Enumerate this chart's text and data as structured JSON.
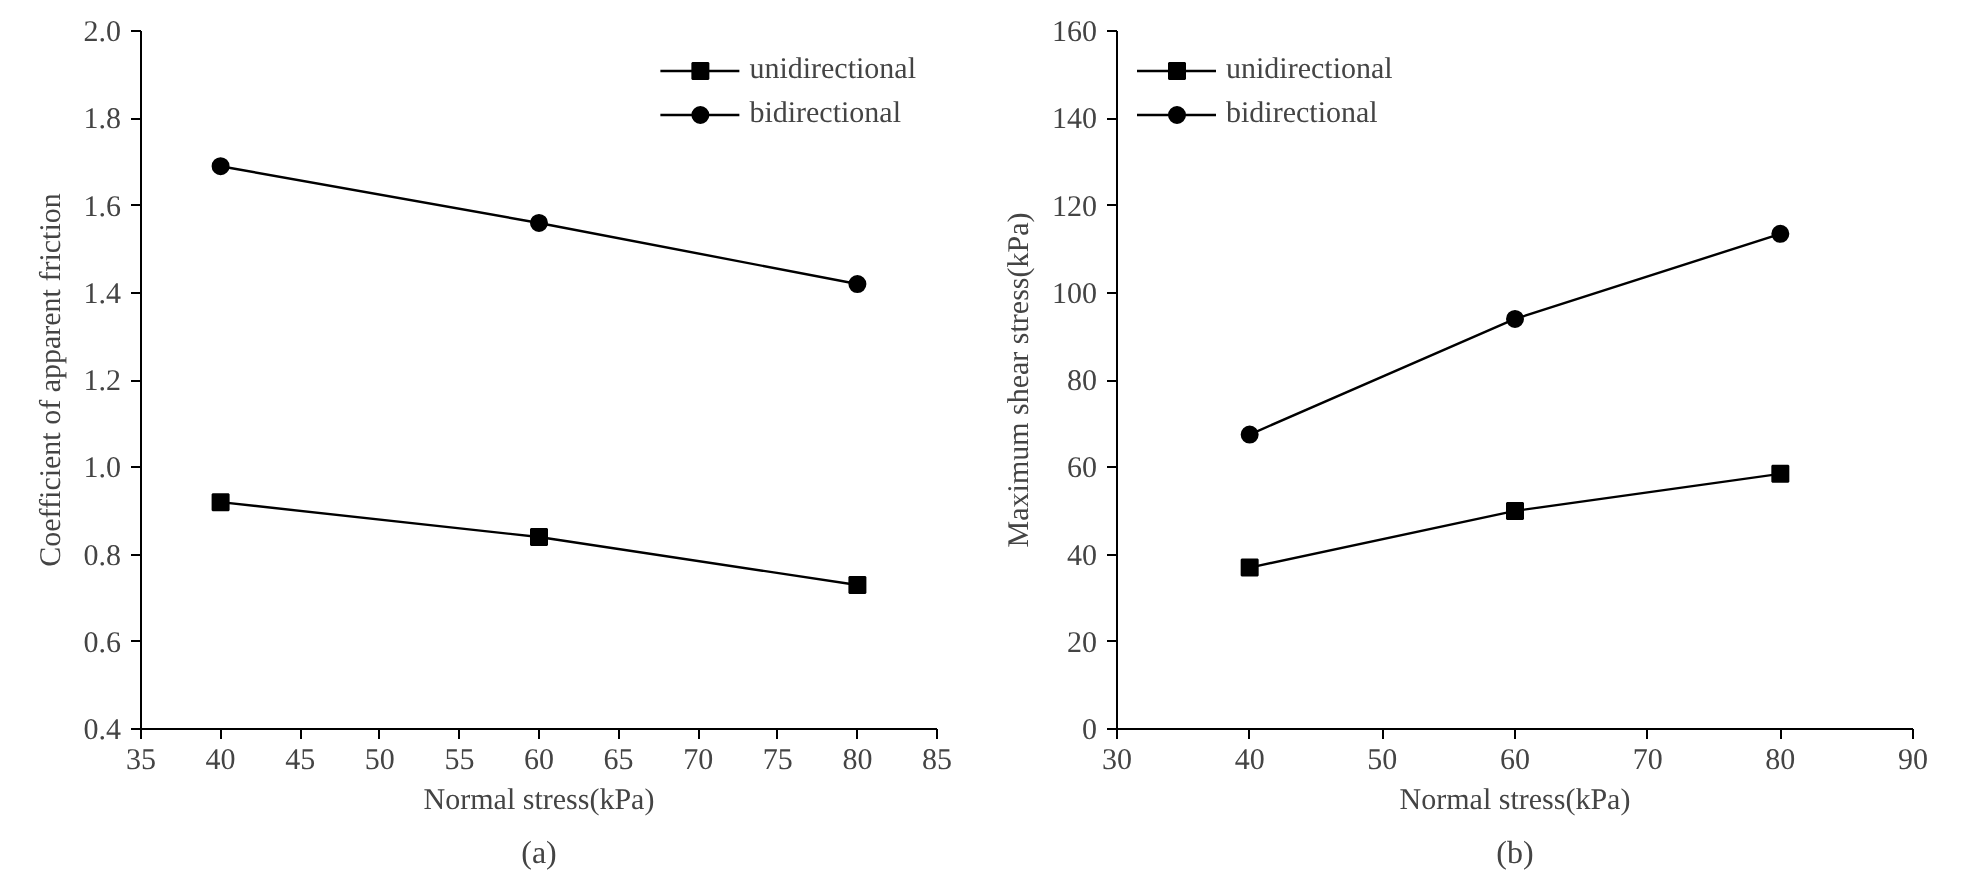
{
  "chart_data": [
    {
      "type": "line",
      "xlabel": "Normal stress(kPa)",
      "ylabel": "Coefficient of apparent friction",
      "annotations": [
        "(a)"
      ],
      "x": [
        40,
        60,
        80
      ],
      "xlim": [
        35,
        85
      ],
      "xticks": [
        35,
        40,
        45,
        50,
        55,
        60,
        65,
        70,
        75,
        80,
        85
      ],
      "ylim": [
        0.4,
        2.0
      ],
      "yticks": [
        0.4,
        0.6,
        0.8,
        {
          "value": 1.0,
          "label": "1.0"
        },
        1.2,
        1.4,
        1.6,
        1.8,
        {
          "value": 2.0,
          "label": "2.0"
        }
      ],
      "grid": false,
      "legend": "top right",
      "line_style": "solid",
      "series": [
        {
          "name": "unidirectional",
          "color": "#000000",
          "marker": "square",
          "values": [
            0.92,
            0.84,
            0.73
          ]
        },
        {
          "name": "bidirectional",
          "color": "#000000",
          "marker": "circle",
          "values": [
            1.69,
            1.56,
            1.42
          ]
        }
      ]
    },
    {
      "type": "line",
      "xlabel": "Normal stress(kPa)",
      "ylabel": "Maximum shear stress(kPa)",
      "annotations": [
        "(b)"
      ],
      "x": [
        40,
        60,
        80
      ],
      "xlim": [
        30,
        90
      ],
      "xticks": [
        30,
        40,
        50,
        60,
        70,
        80,
        90
      ],
      "ylim": [
        0,
        160
      ],
      "yticks": [
        0,
        20,
        40,
        60,
        80,
        100,
        120,
        140,
        160
      ],
      "grid": false,
      "legend": "top left",
      "line_style": "solid",
      "series": [
        {
          "name": "unidirectional",
          "color": "#000000",
          "marker": "square",
          "values": [
            37,
            50,
            58.5
          ]
        },
        {
          "name": "bidirectional",
          "color": "#000000",
          "marker": "circle",
          "values": [
            67.5,
            94,
            113.5
          ]
        }
      ]
    }
  ]
}
